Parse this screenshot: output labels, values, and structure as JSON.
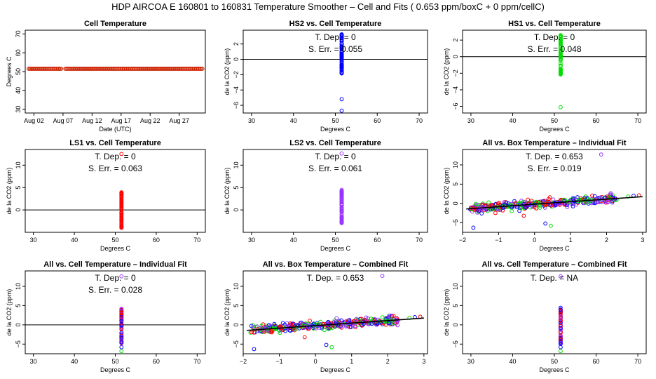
{
  "page_title": "HDP   AIRCOA E   160801 to 160831   Temperature Smoother – Cell and Fits ( 0.653  ppm/boxC +  0  ppm/cellC)",
  "series_colors": {
    "hs2": "#0000ff",
    "hs1": "#00dd00",
    "ls1": "#ff0000",
    "ls2": "#9933ff",
    "cell": "#cc2200"
  },
  "chart_data": [
    {
      "id": "p1",
      "type": "scatter",
      "title": "Cell Temperature",
      "xlabel": "Date (UTC)",
      "ylabel": "Degrees C",
      "xlim": [
        0,
        31
      ],
      "ylim": [
        28,
        72
      ],
      "x_ticks": [
        {
          "v": 1.5,
          "label": "Aug 02"
        },
        {
          "v": 6.5,
          "label": "Aug 07"
        },
        {
          "v": 11.5,
          "label": "Aug 12"
        },
        {
          "v": 16.5,
          "label": "Aug 17"
        },
        {
          "v": 21.5,
          "label": "Aug 22"
        },
        {
          "v": 26.5,
          "label": "Aug 27"
        }
      ],
      "y_ticks": [
        {
          "v": 30,
          "label": "30"
        },
        {
          "v": 40,
          "label": "40"
        },
        {
          "v": 50,
          "label": "50"
        },
        {
          "v": 60,
          "label": "60"
        },
        {
          "v": 70,
          "label": "70"
        }
      ],
      "series": [
        {
          "name": "cell temperature",
          "color": "cell",
          "x_range": [
            0.6,
            30.6
          ],
          "y": 51.5,
          "gap": [
            6.2,
            6.8
          ]
        }
      ]
    },
    {
      "id": "p2",
      "type": "scatter",
      "title": "HS2 vs. Cell Temperature",
      "xlabel": "Degrees C",
      "ylabel": "de la CO2 (ppm)",
      "xlim": [
        28,
        72
      ],
      "ylim": [
        -7,
        3.8
      ],
      "x_ticks": [
        {
          "v": 30,
          "label": "30"
        },
        {
          "v": 40,
          "label": "40"
        },
        {
          "v": 50,
          "label": "50"
        },
        {
          "v": 60,
          "label": "60"
        },
        {
          "v": 70,
          "label": "70"
        }
      ],
      "y_ticks": [
        {
          "v": -6,
          "label": "−6"
        },
        {
          "v": -4,
          "label": "−4"
        },
        {
          "v": -2,
          "label": "−2"
        },
        {
          "v": 0,
          "label": "0"
        },
        {
          "v": 2,
          "label": "2"
        }
      ],
      "hline": 0,
      "annotations": [
        "T. Dep. =  0",
        "S. Err. =  0.055"
      ],
      "series": [
        {
          "name": "HS2",
          "color": "hs2",
          "x": 51.5,
          "y_range": [
            -2.2,
            3.3
          ],
          "outliers": [
            -5.2,
            -6.7
          ]
        }
      ]
    },
    {
      "id": "p3",
      "type": "scatter",
      "title": "HS1 vs. Cell Temperature",
      "xlabel": "Degrees C",
      "ylabel": "de la CO2 (ppm)",
      "xlim": [
        28,
        72
      ],
      "ylim": [
        -6.8,
        3.2
      ],
      "x_ticks": [
        {
          "v": 30,
          "label": "30"
        },
        {
          "v": 40,
          "label": "40"
        },
        {
          "v": 50,
          "label": "50"
        },
        {
          "v": 60,
          "label": "60"
        },
        {
          "v": 70,
          "label": "70"
        }
      ],
      "y_ticks": [
        {
          "v": -6,
          "label": "−6"
        },
        {
          "v": -4,
          "label": "−4"
        },
        {
          "v": -2,
          "label": "−2"
        },
        {
          "v": 0,
          "label": "0"
        },
        {
          "v": 2,
          "label": "2"
        }
      ],
      "hline": 0,
      "annotations": [
        "T. Dep. =  0",
        "S. Err. =  0.048"
      ],
      "series": [
        {
          "name": "HS1",
          "color": "hs1",
          "x": 51.5,
          "y_range": [
            -2.2,
            2.6
          ],
          "outliers": [
            -6.1
          ]
        }
      ]
    },
    {
      "id": "p4",
      "type": "scatter",
      "title": "LS1 vs. Cell Temperature",
      "xlabel": "Degrees C",
      "ylabel": "de la CO2 (ppm)",
      "xlim": [
        28,
        72
      ],
      "ylim": [
        -5,
        13.5
      ],
      "x_ticks": [
        {
          "v": 30,
          "label": "30"
        },
        {
          "v": 40,
          "label": "40"
        },
        {
          "v": 50,
          "label": "50"
        },
        {
          "v": 60,
          "label": "60"
        },
        {
          "v": 70,
          "label": "70"
        }
      ],
      "y_ticks": [
        {
          "v": 0,
          "label": "0"
        },
        {
          "v": 5,
          "label": "5"
        },
        {
          "v": 10,
          "label": "10"
        }
      ],
      "hline": 0,
      "annotations": [
        "T. Dep. =  0",
        "S. Err. =  0.063"
      ],
      "series": [
        {
          "name": "LS1",
          "color": "ls1",
          "x": 51.5,
          "y_range": [
            -4.2,
            4
          ],
          "outliers": [
            12.5
          ]
        }
      ]
    },
    {
      "id": "p5",
      "type": "scatter",
      "title": "LS2 vs. Cell Temperature",
      "xlabel": "Degrees C",
      "ylabel": "de la CO2 (ppm)",
      "xlim": [
        28,
        72
      ],
      "ylim": [
        -5,
        13.5
      ],
      "x_ticks": [
        {
          "v": 30,
          "label": "30"
        },
        {
          "v": 40,
          "label": "40"
        },
        {
          "v": 50,
          "label": "50"
        },
        {
          "v": 60,
          "label": "60"
        },
        {
          "v": 70,
          "label": "70"
        }
      ],
      "y_ticks": [
        {
          "v": 0,
          "label": "0"
        },
        {
          "v": 5,
          "label": "5"
        },
        {
          "v": 10,
          "label": "10"
        }
      ],
      "annotations": [
        "T. Dep. =  0",
        "S. Err. =  0.061"
      ],
      "series": [
        {
          "name": "LS2",
          "color": "ls2",
          "x": 51.5,
          "y_range": [
            -3,
            4.5
          ],
          "outliers": [
            12.6
          ]
        }
      ]
    },
    {
      "id": "p6",
      "type": "scatter",
      "title": "All vs. Box Temperature – Individual Fit",
      "xlabel": "Degrees C",
      "ylabel": "de la CO2 (ppm)",
      "xlim": [
        -2,
        3.1
      ],
      "ylim": [
        -7.5,
        14
      ],
      "x_ticks": [
        {
          "v": -2,
          "label": "−2"
        },
        {
          "v": -1,
          "label": "−1"
        },
        {
          "v": 0,
          "label": "0"
        },
        {
          "v": 1,
          "label": "1"
        },
        {
          "v": 2,
          "label": "2"
        },
        {
          "v": 3,
          "label": "3"
        }
      ],
      "y_ticks": [
        {
          "v": -5,
          "label": "−5"
        },
        {
          "v": 0,
          "label": "0"
        },
        {
          "v": 5,
          "label": "5"
        },
        {
          "v": 10,
          "label": "10"
        }
      ],
      "annotations": [
        "T. Dep. =  0.653",
        "S. Err. =  0.019"
      ],
      "fit": {
        "slope": 0.653,
        "intercept": -0.2,
        "x_range": [
          -1.9,
          3.0
        ]
      },
      "cloud": {
        "x_range": [
          -1.8,
          2.3
        ],
        "slope": 0.653,
        "intercept": -0.2,
        "spread": 1.0
      },
      "series": [
        {
          "name": "outliers",
          "points": [
            [
              1.85,
              12.7,
              "ls2"
            ],
            [
              -1.7,
              -6.3,
              "hs2"
            ],
            [
              0.45,
              -5.8,
              "hs1"
            ],
            [
              0.3,
              -5.2,
              "hs2"
            ],
            [
              -0.3,
              -3.2,
              "ls1"
            ],
            [
              2.9,
              2.1,
              "ls1"
            ],
            [
              2.6,
              1.8,
              "hs1"
            ],
            [
              2.75,
              2.0,
              "hs2"
            ]
          ]
        }
      ]
    },
    {
      "id": "p7",
      "type": "scatter",
      "title": "All vs. Cell Temperature – Individual Fit",
      "xlabel": "Degrees C",
      "ylabel": "de la CO2 (ppm)",
      "xlim": [
        28,
        72
      ],
      "ylim": [
        -7.5,
        14
      ],
      "x_ticks": [
        {
          "v": 30,
          "label": "30"
        },
        {
          "v": 40,
          "label": "40"
        },
        {
          "v": 50,
          "label": "50"
        },
        {
          "v": 60,
          "label": "60"
        },
        {
          "v": 70,
          "label": "70"
        }
      ],
      "y_ticks": [
        {
          "v": -5,
          "label": "−5"
        },
        {
          "v": 0,
          "label": "0"
        },
        {
          "v": 5,
          "label": "5"
        },
        {
          "v": 10,
          "label": "10"
        }
      ],
      "hline": 0,
      "annotations": [
        "T. Dep. =  0",
        "S. Err. =  0.028"
      ],
      "series": [
        {
          "name": "All",
          "x": 51.5,
          "y_range": [
            -5,
            4.6
          ],
          "colors": [
            "ls1",
            "ls2",
            "hs2"
          ],
          "outliers": [
            [
              -5.8,
              "hs2"
            ],
            [
              -6.8,
              "hs1"
            ],
            [
              12.6,
              "ls2"
            ]
          ]
        }
      ]
    },
    {
      "id": "p8",
      "type": "scatter",
      "title": "All vs. Box Temperature – Combined Fit",
      "xlabel": "Degrees C",
      "ylabel": "de la CO2 (ppm)",
      "xlim": [
        -2,
        3.1
      ],
      "ylim": [
        -7.5,
        14
      ],
      "x_ticks": [
        {
          "v": -2,
          "label": "−2"
        },
        {
          "v": -1,
          "label": "−1"
        },
        {
          "v": 0,
          "label": "0"
        },
        {
          "v": 1,
          "label": "1"
        },
        {
          "v": 2,
          "label": "2"
        },
        {
          "v": 3,
          "label": "3"
        }
      ],
      "y_ticks": [
        {
          "v": -5,
          "label": "−5"
        },
        {
          "v": 0,
          "label": "0"
        },
        {
          "v": 5,
          "label": "5"
        },
        {
          "v": 10,
          "label": "10"
        }
      ],
      "annotations": [
        "T. Dep. =  0.653"
      ],
      "fit": {
        "slope": 0.653,
        "intercept": -0.2,
        "x_range": [
          -1.9,
          3.0
        ]
      },
      "cloud": {
        "x_range": [
          -1.8,
          2.3
        ],
        "slope": 0.653,
        "intercept": -0.2,
        "spread": 1.0
      },
      "series": [
        {
          "name": "outliers",
          "points": [
            [
              1.85,
              12.7,
              "ls2"
            ],
            [
              -1.7,
              -6.3,
              "hs2"
            ],
            [
              0.45,
              -5.8,
              "hs1"
            ],
            [
              0.3,
              -5.2,
              "hs2"
            ],
            [
              -0.3,
              -3.2,
              "ls1"
            ],
            [
              2.9,
              2.1,
              "ls1"
            ],
            [
              2.6,
              1.8,
              "hs1"
            ],
            [
              2.75,
              2.0,
              "hs2"
            ]
          ]
        }
      ]
    },
    {
      "id": "p9",
      "type": "scatter",
      "title": "All vs. Cell Temperature – Combined Fit",
      "xlabel": "Degrees C",
      "ylabel": "de la CO2 (ppm)",
      "xlim": [
        28,
        72
      ],
      "ylim": [
        -7.5,
        14
      ],
      "x_ticks": [
        {
          "v": 30,
          "label": "30"
        },
        {
          "v": 40,
          "label": "40"
        },
        {
          "v": 50,
          "label": "50"
        },
        {
          "v": 60,
          "label": "60"
        },
        {
          "v": 70,
          "label": "70"
        }
      ],
      "y_ticks": [
        {
          "v": -5,
          "label": "−5"
        },
        {
          "v": 0,
          "label": "0"
        },
        {
          "v": 5,
          "label": "5"
        },
        {
          "v": 10,
          "label": "10"
        }
      ],
      "annotations": [
        "T. Dep. =  NA"
      ],
      "series": [
        {
          "name": "All",
          "x": 51.5,
          "y_range": [
            -5,
            4.6
          ],
          "colors": [
            "ls1",
            "ls2",
            "hs2"
          ],
          "outliers": [
            [
              -5.8,
              "hs2"
            ],
            [
              -6.8,
              "hs1"
            ],
            [
              12.6,
              "ls2"
            ]
          ]
        }
      ]
    }
  ]
}
